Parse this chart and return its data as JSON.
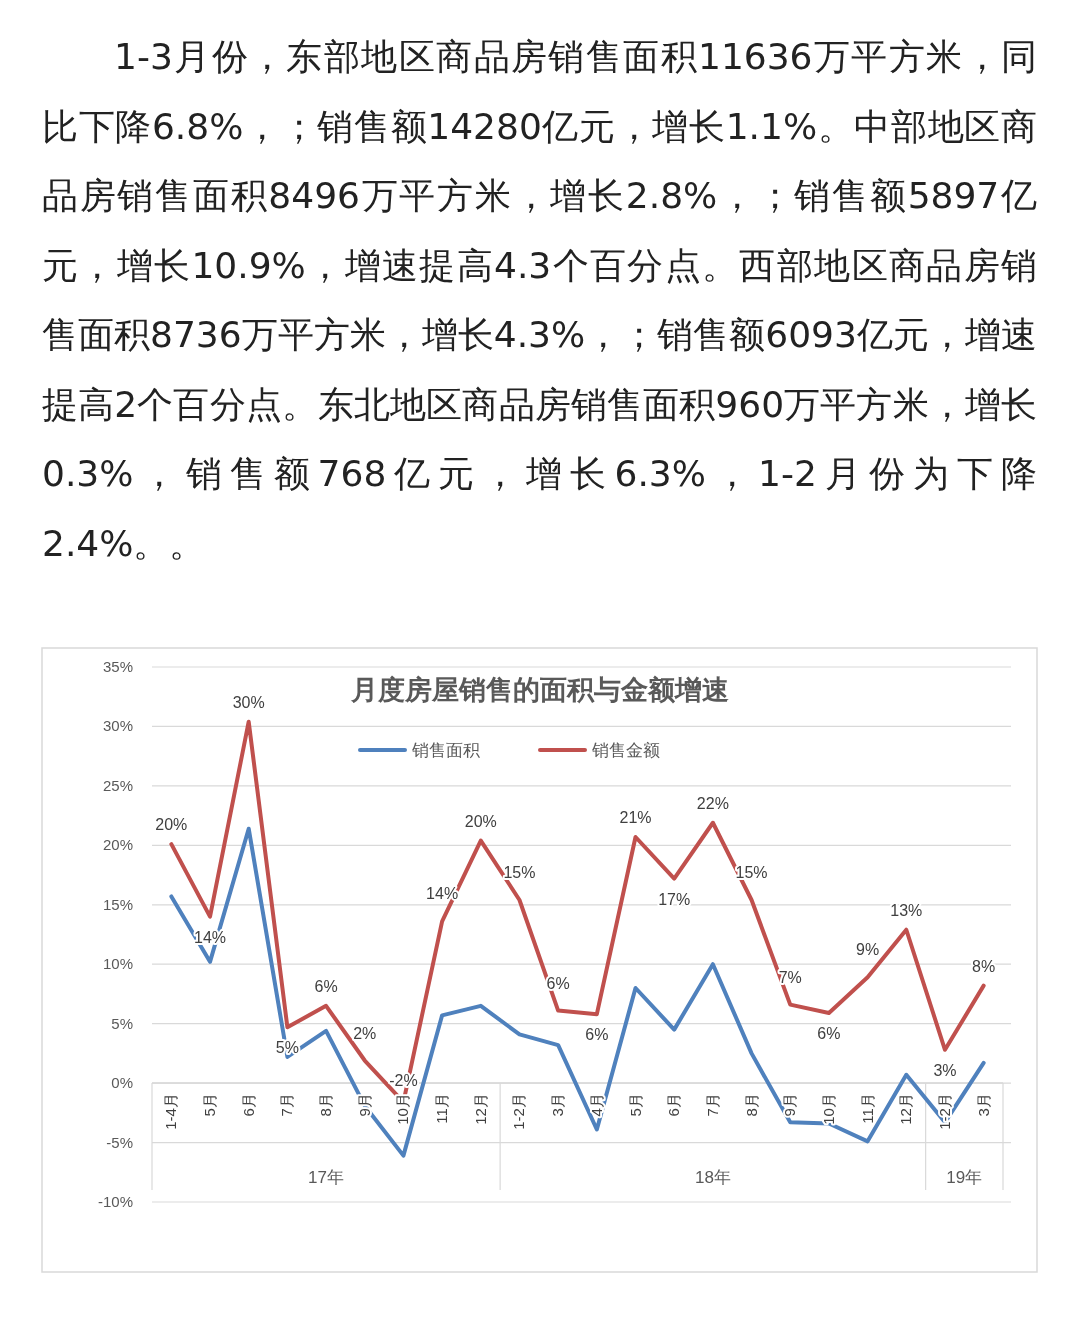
{
  "chart_data": {
    "type": "line",
    "title": "月度房屋销售的面积与金额增速",
    "categories": [
      "1-4月",
      "5月",
      "6月",
      "7月",
      "8月",
      "9月",
      "10月",
      "11月",
      "12月",
      "1-2月",
      "3月",
      "4月",
      "5月",
      "6月",
      "7月",
      "8月",
      "9月",
      "10月",
      "11月",
      "12月",
      "1-2月",
      "3月"
    ],
    "series": [
      {
        "name": "销售面积",
        "color": "#4f81bd",
        "values": [
          15.7,
          10.2,
          21.4,
          2.2,
          4.4,
          -1.9,
          -6.1,
          5.7,
          6.5,
          4.1,
          3.2,
          -3.9,
          8.0,
          4.5,
          10.0,
          2.5,
          -3.3,
          -3.4,
          -4.9,
          0.7,
          -3.3,
          1.7
        ]
      },
      {
        "name": "销售金额",
        "color": "#c0504d",
        "values": [
          20.1,
          14.0,
          30.4,
          4.7,
          6.5,
          1.9,
          -1.6,
          13.6,
          20.4,
          15.4,
          6.1,
          5.8,
          20.7,
          17.2,
          21.9,
          15.4,
          6.6,
          5.9,
          8.9,
          12.9,
          2.8,
          8.2
        ],
        "value_labels": [
          "20%",
          "14%",
          "30%",
          "5%",
          "6%",
          "2%",
          "-2%",
          "14%",
          "20%",
          "15%",
          "6%",
          "6%",
          "21%",
          "17%",
          "22%",
          "15%",
          "7%",
          "6%",
          "9%",
          "13%",
          "3%",
          "8%"
        ]
      }
    ],
    "ylim": [
      -10,
      35
    ],
    "yticks": [
      {
        "value": -10,
        "label": "-10%"
      },
      {
        "value": -5,
        "label": "-5%"
      },
      {
        "value": 0,
        "label": "0%"
      },
      {
        "value": 5,
        "label": "5%"
      },
      {
        "value": 10,
        "label": "10%"
      },
      {
        "value": 15,
        "label": "15%"
      },
      {
        "value": 20,
        "label": "20%"
      },
      {
        "value": 25,
        "label": "25%"
      },
      {
        "value": 30,
        "label": "30%"
      },
      {
        "value": 35,
        "label": "35%"
      }
    ],
    "grid": "y",
    "legend": "top",
    "line_style": "solid",
    "annotations": [
      "1-3月份，东部地区商品房销售面积11636万平方米，同比下降6.8%，；销售额14280亿元，增长1.1%。中部地区商品房销售面积8496万平方米，增长2.8%，；销售额5897亿元，增长10.9%，增速提高4.3个百分点。西部地区商品房销售面积8736万平方米，增长4.3%，；销售额6093亿元，增速提高2个百分点。东北地区商品房销售面积960万平方米，增长0.3%，销售额768亿元，增长6.3%，1-2月份为下降2.4%。。",
      "17年",
      "18年",
      "19年"
    ]
  }
}
